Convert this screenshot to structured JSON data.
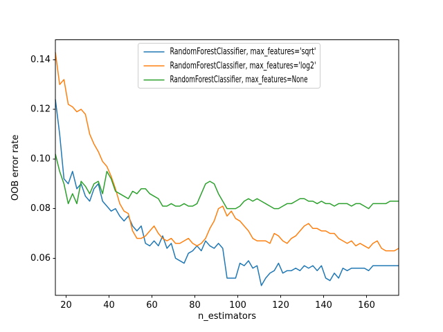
{
  "figure": {
    "background": "#ffffff"
  },
  "chart_data": {
    "type": "line",
    "title": "",
    "xlabel": "n_estimators",
    "ylabel": "OOB error rate",
    "xlim": [
      15,
      175
    ],
    "ylim": [
      0.045,
      0.148
    ],
    "xticks": [
      20,
      40,
      60,
      80,
      100,
      120,
      140,
      160
    ],
    "xticklabels": [
      "20",
      "40",
      "60",
      "80",
      "100",
      "120",
      "140",
      "160"
    ],
    "yticks": [
      0.06,
      0.08,
      0.1,
      0.12,
      0.14
    ],
    "yticklabels": [
      "0.06",
      "0.08",
      "0.10",
      "0.12",
      "0.14"
    ],
    "grid": false,
    "legend_position": "upper center",
    "legend_edge_color": "#cccccc",
    "legend_background": "#ffffff",
    "x": [
      15,
      17,
      19,
      21,
      23,
      25,
      27,
      29,
      31,
      33,
      35,
      37,
      39,
      41,
      43,
      45,
      47,
      49,
      51,
      53,
      55,
      57,
      59,
      61,
      63,
      65,
      67,
      69,
      71,
      73,
      75,
      77,
      79,
      81,
      83,
      85,
      87,
      89,
      91,
      93,
      95,
      97,
      99,
      101,
      103,
      105,
      107,
      109,
      111,
      113,
      115,
      117,
      119,
      121,
      123,
      125,
      127,
      129,
      131,
      133,
      135,
      137,
      139,
      141,
      143,
      145,
      147,
      149,
      151,
      153,
      155,
      157,
      159,
      161,
      163,
      165,
      167,
      169,
      171,
      173,
      175
    ],
    "series": [
      {
        "name": "RandomForestClassifier, max_features='sqrt'",
        "color": "#1f77b4",
        "values": [
          0.124,
          0.11,
          0.092,
          0.09,
          0.095,
          0.088,
          0.09,
          0.085,
          0.083,
          0.088,
          0.09,
          0.083,
          0.081,
          0.079,
          0.08,
          0.077,
          0.075,
          0.077,
          0.073,
          0.071,
          0.073,
          0.066,
          0.065,
          0.067,
          0.065,
          0.069,
          0.064,
          0.066,
          0.06,
          0.059,
          0.058,
          0.062,
          0.063,
          0.065,
          0.063,
          0.067,
          0.065,
          0.064,
          0.066,
          0.064,
          0.052,
          0.052,
          0.052,
          0.058,
          0.057,
          0.059,
          0.056,
          0.057,
          0.049,
          0.052,
          0.054,
          0.055,
          0.058,
          0.054,
          0.055,
          0.055,
          0.056,
          0.055,
          0.057,
          0.056,
          0.057,
          0.055,
          0.057,
          0.052,
          0.051,
          0.054,
          0.052,
          0.056,
          0.055,
          0.056,
          0.056,
          0.056,
          0.056,
          0.055,
          0.057,
          0.057,
          0.057,
          0.057,
          0.057,
          0.057,
          0.057
        ]
      },
      {
        "name": "RandomForestClassifier, max_features='log2'",
        "color": "#ff7f0e",
        "values": [
          0.143,
          0.13,
          0.132,
          0.122,
          0.121,
          0.119,
          0.12,
          0.118,
          0.11,
          0.106,
          0.103,
          0.099,
          0.097,
          0.093,
          0.088,
          0.082,
          0.079,
          0.078,
          0.071,
          0.068,
          0.068,
          0.069,
          0.071,
          0.073,
          0.07,
          0.068,
          0.067,
          0.068,
          0.066,
          0.066,
          0.067,
          0.068,
          0.066,
          0.065,
          0.066,
          0.068,
          0.072,
          0.075,
          0.08,
          0.081,
          0.077,
          0.079,
          0.076,
          0.075,
          0.073,
          0.071,
          0.068,
          0.067,
          0.067,
          0.067,
          0.066,
          0.07,
          0.069,
          0.067,
          0.066,
          0.068,
          0.069,
          0.071,
          0.073,
          0.074,
          0.072,
          0.072,
          0.071,
          0.071,
          0.07,
          0.07,
          0.068,
          0.067,
          0.066,
          0.067,
          0.065,
          0.066,
          0.065,
          0.064,
          0.066,
          0.067,
          0.064,
          0.063,
          0.063,
          0.063,
          0.064
        ]
      },
      {
        "name": "RandomForestClassifier, max_features=None",
        "color": "#2ca02c",
        "values": [
          0.102,
          0.095,
          0.09,
          0.082,
          0.086,
          0.082,
          0.091,
          0.089,
          0.086,
          0.09,
          0.091,
          0.086,
          0.095,
          0.092,
          0.087,
          0.086,
          0.085,
          0.084,
          0.087,
          0.086,
          0.088,
          0.088,
          0.086,
          0.085,
          0.084,
          0.081,
          0.081,
          0.082,
          0.081,
          0.081,
          0.082,
          0.081,
          0.081,
          0.082,
          0.086,
          0.09,
          0.091,
          0.09,
          0.086,
          0.083,
          0.08,
          0.08,
          0.08,
          0.081,
          0.083,
          0.084,
          0.083,
          0.084,
          0.083,
          0.082,
          0.081,
          0.08,
          0.08,
          0.081,
          0.082,
          0.082,
          0.083,
          0.084,
          0.084,
          0.083,
          0.083,
          0.082,
          0.083,
          0.082,
          0.082,
          0.081,
          0.082,
          0.082,
          0.082,
          0.081,
          0.082,
          0.082,
          0.081,
          0.08,
          0.082,
          0.082,
          0.082,
          0.082,
          0.083,
          0.083,
          0.083
        ]
      }
    ]
  }
}
